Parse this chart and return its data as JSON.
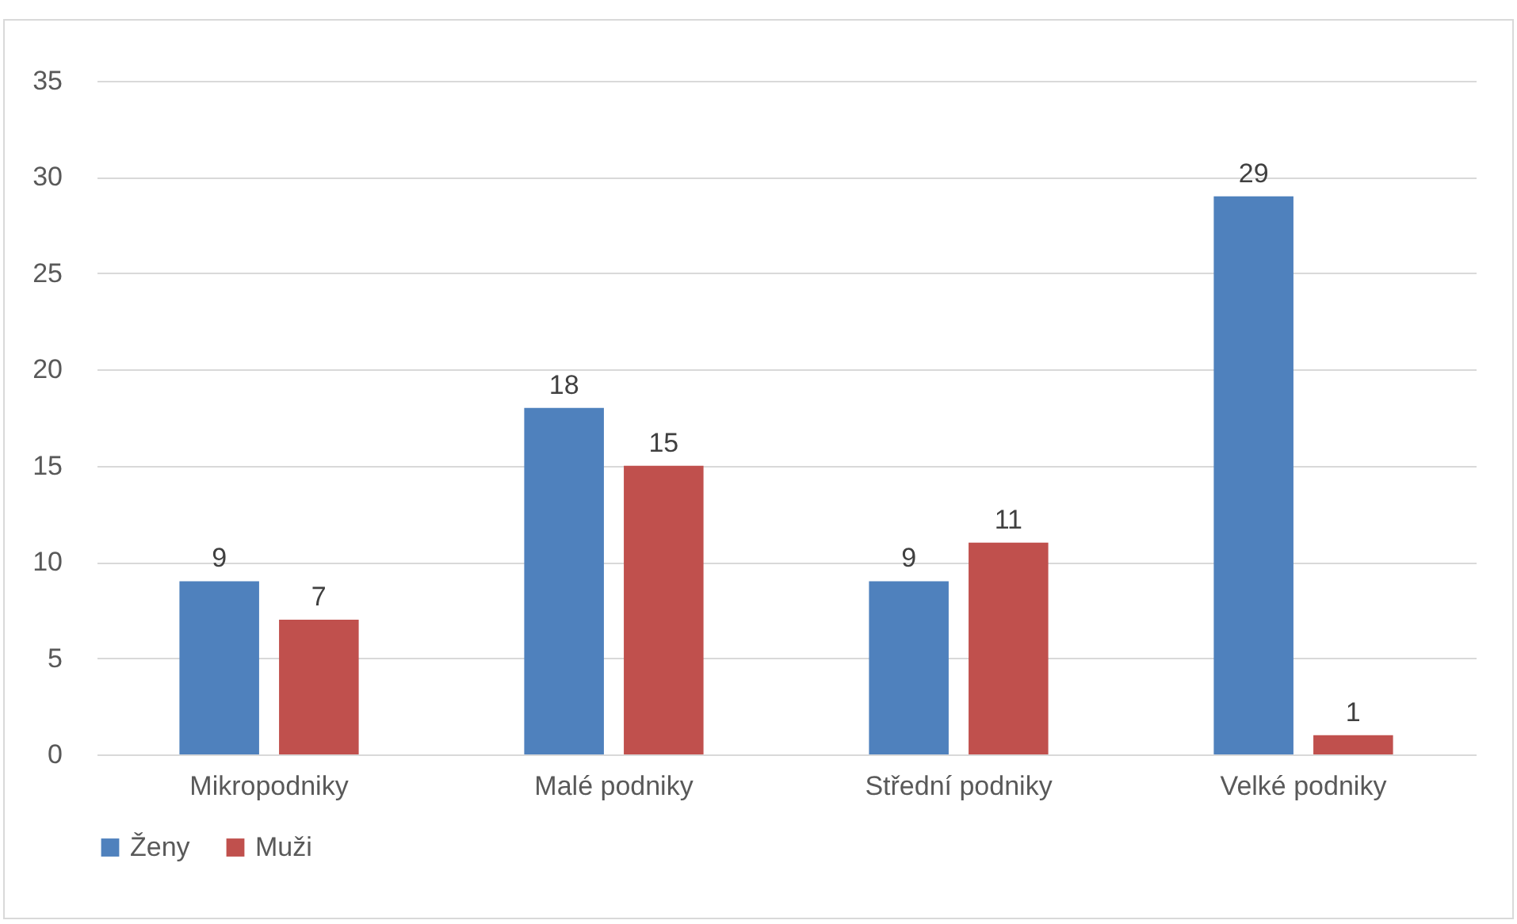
{
  "chart_data": {
    "type": "bar",
    "categories": [
      "Mikropodniky",
      "Malé podniky",
      "Střední podniky",
      "Velké podniky"
    ],
    "series": [
      {
        "name": "Ženy",
        "color": "#4f81bd",
        "values": [
          9,
          18,
          9,
          29
        ]
      },
      {
        "name": "Muži",
        "color": "#c0504d",
        "values": [
          7,
          15,
          11,
          1
        ]
      }
    ],
    "ylim": [
      0,
      35
    ],
    "yticks": [
      0,
      5,
      10,
      15,
      20,
      25,
      30,
      35
    ],
    "grid": "y",
    "legend": "bottom",
    "data_labels": true
  }
}
